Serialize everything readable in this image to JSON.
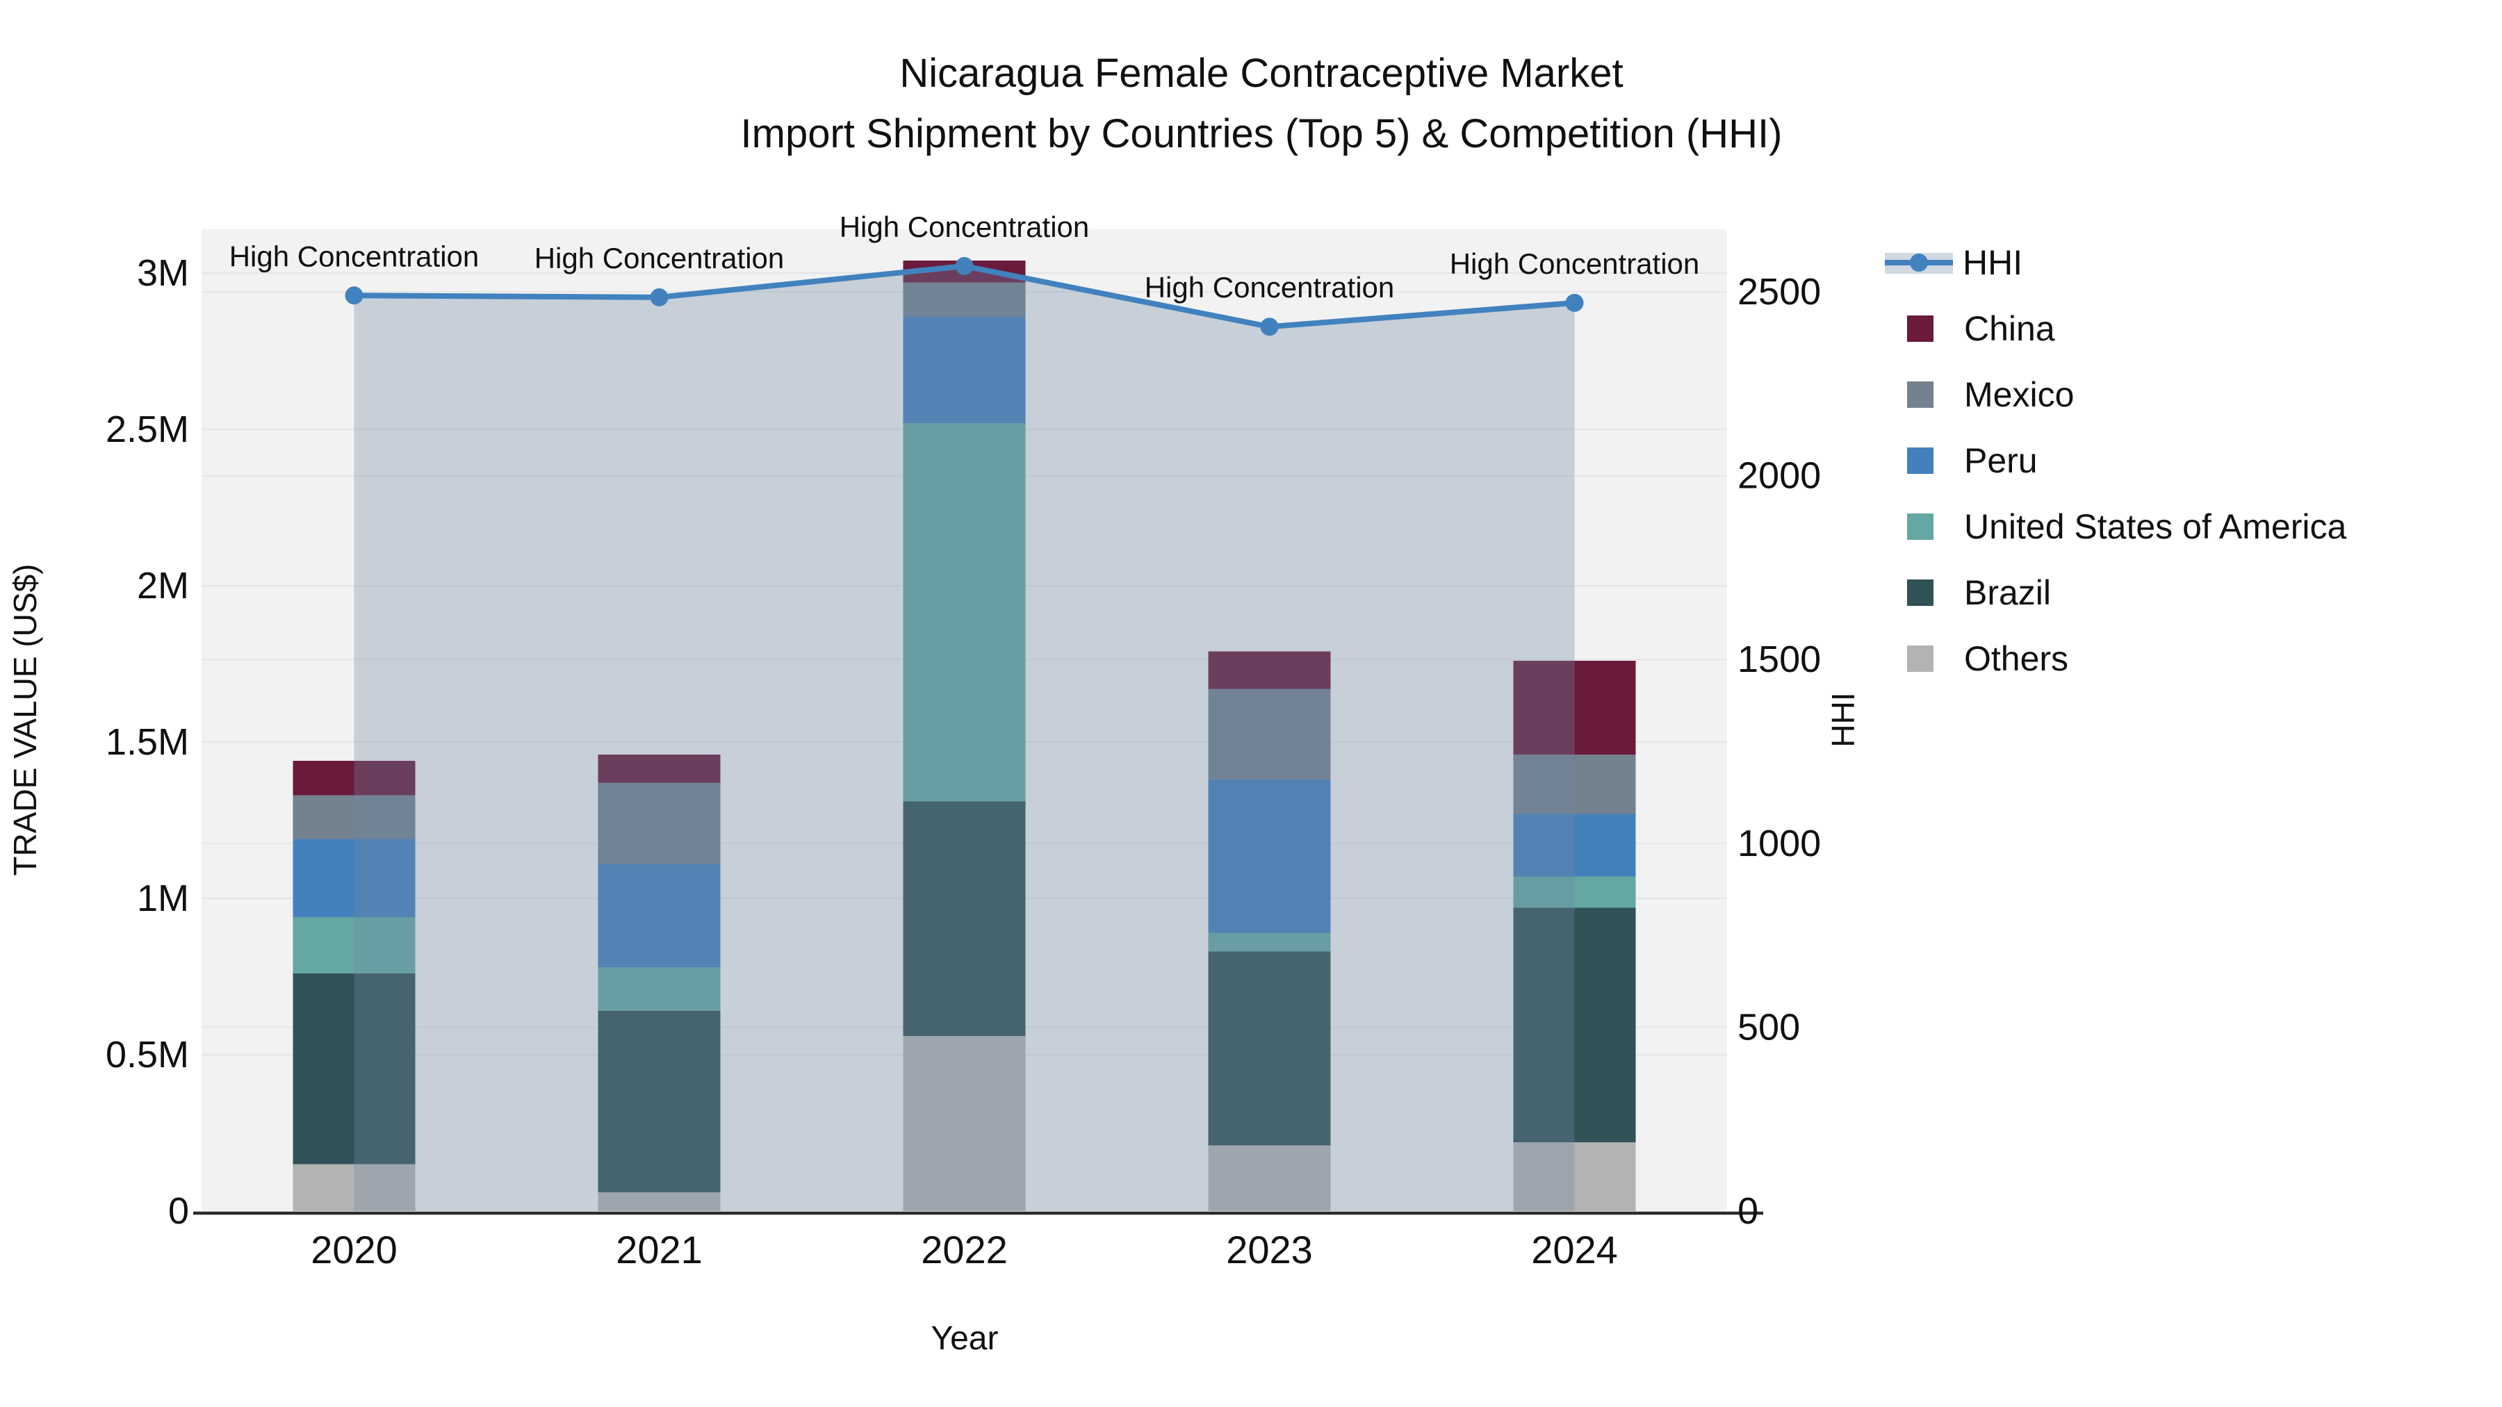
{
  "title": {
    "line1": "Nicaragua Female Contraceptive Market",
    "line2": "Import Shipment by Countries (Top 5) & Competition (HHI)"
  },
  "colors": {
    "background": "#ffffff",
    "plot_background": "#f2f2f2",
    "gridline": "#e6e6e6",
    "axis_line": "#2b2b2b",
    "text": "#101010",
    "hhi_line": "#4182be",
    "hhi_area_fill": "rgba(113,137,163,0.33)",
    "china": "#6b1a3c",
    "mexico": "#74818f",
    "peru": "#4381bd",
    "usa": "#64a7a3",
    "brazil": "#315256",
    "others": "#b3b3b3"
  },
  "legend": {
    "items": [
      {
        "label": "HHI",
        "type": "line",
        "color": "#4182be"
      },
      {
        "label": "China",
        "type": "square",
        "color": "#6b1a3c"
      },
      {
        "label": "Mexico",
        "type": "square",
        "color": "#74818f"
      },
      {
        "label": "Peru",
        "type": "square",
        "color": "#4381bd"
      },
      {
        "label": "United States of America",
        "type": "square",
        "color": "#64a7a3"
      },
      {
        "label": "Brazil",
        "type": "square",
        "color": "#315256"
      },
      {
        "label": "Others",
        "type": "square",
        "color": "#b3b3b3"
      }
    ]
  },
  "chart_data": {
    "type": "bar",
    "subtype": "stacked-bars-with-hhi-line-and-area",
    "title": "Nicaragua Female Contraceptive Market Import Shipment by Countries (Top 5) & Competition (HHI)",
    "xlabel": "Year",
    "ylabel": "TRADE VALUE (US$)",
    "ylabel_right": "HHI",
    "categories": [
      "2020",
      "2021",
      "2022",
      "2023",
      "2024"
    ],
    "stack_order_bottom_to_top": [
      "Others",
      "Brazil",
      "United States of America",
      "Peru",
      "Mexico",
      "China"
    ],
    "series": [
      {
        "name": "China",
        "type": "bar",
        "color": "#6b1a3c",
        "values": [
          110000,
          90000,
          70000,
          120000,
          300000
        ]
      },
      {
        "name": "Mexico",
        "type": "bar",
        "color": "#74818f",
        "values": [
          140000,
          260000,
          110000,
          290000,
          190000
        ]
      },
      {
        "name": "Peru",
        "type": "bar",
        "color": "#4381bd",
        "values": [
          250000,
          330000,
          340000,
          490000,
          200000
        ]
      },
      {
        "name": "United States of America",
        "type": "bar",
        "color": "#64a7a3",
        "values": [
          180000,
          140000,
          1210000,
          60000,
          100000
        ]
      },
      {
        "name": "Brazil",
        "type": "bar",
        "color": "#315256",
        "values": [
          610000,
          580000,
          750000,
          620000,
          750000
        ]
      },
      {
        "name": "Others",
        "type": "bar",
        "color": "#b3b3b3",
        "values": [
          150000,
          60000,
          560000,
          210000,
          220000
        ]
      },
      {
        "name": "HHI",
        "type": "line",
        "axis": "right",
        "color": "#4182be",
        "area_fill": "rgba(113,137,163,0.33)",
        "values": [
          2490,
          2485,
          2570,
          2405,
          2470
        ]
      }
    ],
    "bar_totals": [
      1440000,
      1460000,
      3040000,
      1790000,
      1760000
    ],
    "annotation_text": "High Concentration",
    "annotations_on_points": [
      true,
      true,
      true,
      true,
      true
    ],
    "y_left_ticks": [
      {
        "v": 0,
        "label": "0"
      },
      {
        "v": 500000,
        "label": "0.5M"
      },
      {
        "v": 1000000,
        "label": "1M"
      },
      {
        "v": 1500000,
        "label": "1.5M"
      },
      {
        "v": 2000000,
        "label": "2M"
      },
      {
        "v": 2500000,
        "label": "2.5M"
      },
      {
        "v": 3000000,
        "label": "3M"
      }
    ],
    "y_right_ticks": [
      {
        "v": 0,
        "label": "0"
      },
      {
        "v": 500,
        "label": "500"
      },
      {
        "v": 1000,
        "label": "1000"
      },
      {
        "v": 1500,
        "label": "1500"
      },
      {
        "v": 2000,
        "label": "2000"
      },
      {
        "v": 2500,
        "label": "2500"
      }
    ],
    "ylim_left": [
      0,
      3140000
    ],
    "ylim_right": [
      0,
      2670
    ],
    "grid": true,
    "legend_position": "right"
  }
}
